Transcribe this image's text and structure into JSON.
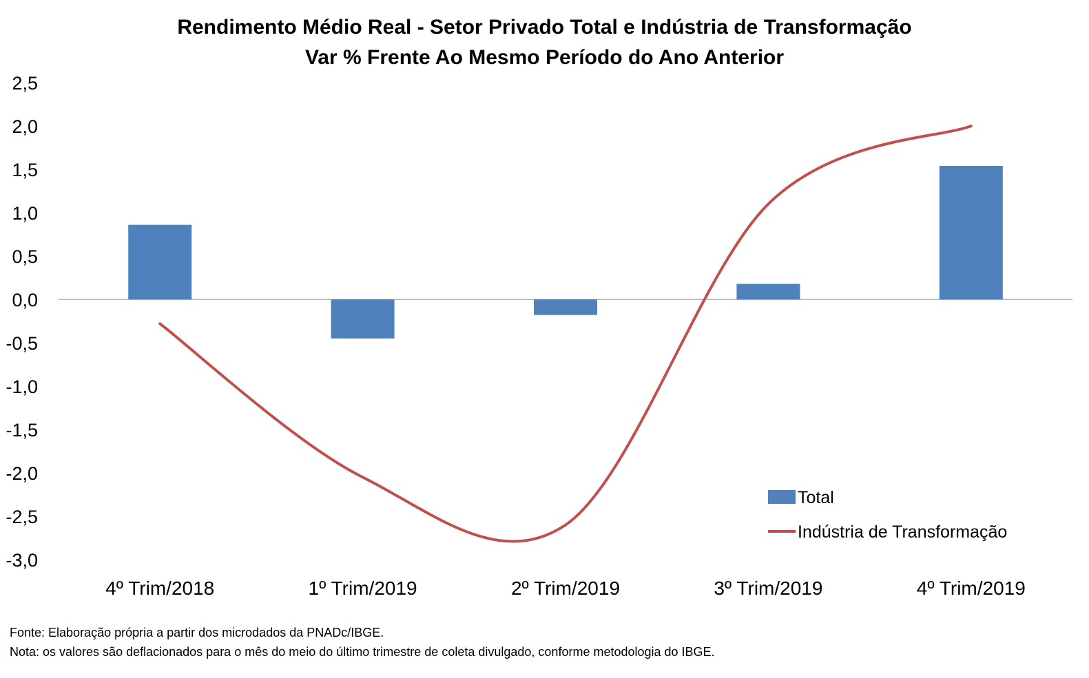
{
  "chart_data": {
    "type": "bar+line",
    "title": "Rendimento Médio Real - Setor Privado Total e Indústria de Transformação",
    "subtitle": "Var % Frente Ao Mesmo Período do Ano Anterior",
    "categories": [
      "4º Trim/2018",
      "1º Trim/2019",
      "2º Trim/2019",
      "3º Trim/2019",
      "4º Trim/2019"
    ],
    "series": [
      {
        "name": "Total",
        "type": "bar",
        "color": "#4f81bd",
        "values": [
          0.86,
          -0.45,
          -0.18,
          0.18,
          1.54
        ]
      },
      {
        "name": "Indústria de Transformação",
        "type": "line",
        "smooth": true,
        "color": "#c0504d",
        "values": [
          -0.28,
          -2.05,
          -2.6,
          1.1,
          2.0
        ]
      }
    ],
    "ylim": [
      -3.0,
      2.5
    ],
    "yticks": [
      "2,5",
      "2,0",
      "1,5",
      "1,0",
      "0,5",
      "0,0",
      "-0,5",
      "-1,0",
      "-1,5",
      "-2,0",
      "-2,5",
      "-3,0"
    ],
    "grid": false,
    "legend_position": "bottom-right"
  },
  "footer": {
    "source": "Fonte: Elaboração própria a partir dos microdados da PNADc/IBGE.",
    "note": "Nota: os valores são deflacionados para o mês do meio do último trimestre de coleta divulgado, conforme metodologia do IBGE."
  }
}
